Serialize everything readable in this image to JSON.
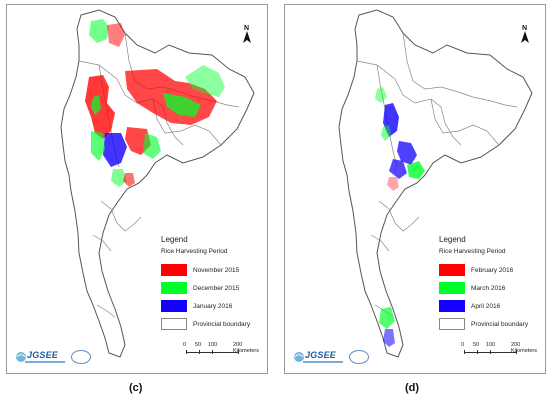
{
  "captions": {
    "left": "(c)",
    "right": "(d)"
  },
  "panels": {
    "c": {
      "legend_title": "Legend",
      "legend_subtitle": "Rice Harvesting Period",
      "items": [
        {
          "label": "November 2015",
          "color": "#ff0000"
        },
        {
          "label": "December 2015",
          "color": "#00ff2a"
        },
        {
          "label": "January 2016",
          "color": "#1300ff"
        },
        {
          "label": "Provincial boundary",
          "color": "#ffffff"
        }
      ],
      "scale": {
        "labels": [
          "0",
          "50",
          "100",
          "200 Kilometers"
        ]
      },
      "north_label": "N",
      "logo_text": "JGSEE"
    },
    "d": {
      "legend_title": "Legend",
      "legend_subtitle": "Rice Harvesting Period",
      "items": [
        {
          "label": "February 2016",
          "color": "#ff0000"
        },
        {
          "label": "March 2016",
          "color": "#00ff2a"
        },
        {
          "label": "April 2016",
          "color": "#1300ff"
        },
        {
          "label": "Provincial boundary",
          "color": "#ffffff"
        }
      ],
      "scale": {
        "labels": [
          "0",
          "50",
          "100",
          "200 Kilometers"
        ]
      },
      "north_label": "N",
      "logo_text": "JGSEE"
    }
  }
}
